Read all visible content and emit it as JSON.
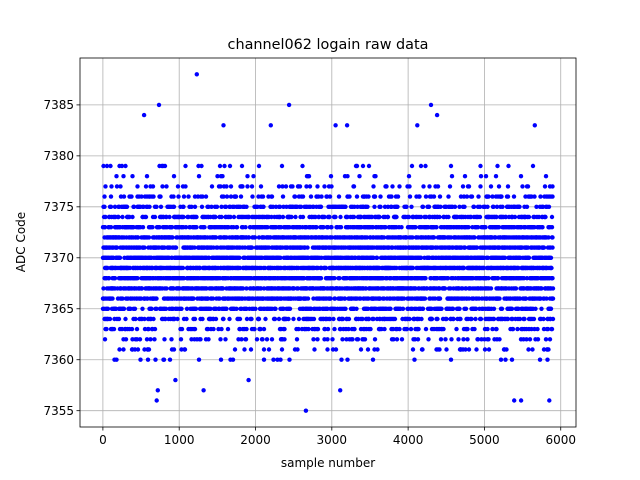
{
  "chart_data": {
    "type": "scatter",
    "title": "channel062 logain raw data",
    "xlabel": "sample number",
    "ylabel": "ADC Code",
    "xlim": [
      -300,
      6200
    ],
    "ylim": [
      7353.4,
      7389.6
    ],
    "xticks": [
      0,
      1000,
      2000,
      3000,
      4000,
      5000,
      6000
    ],
    "yticks": [
      7355,
      7360,
      7365,
      7370,
      7375,
      7380,
      7385
    ],
    "grid": true,
    "marker_color": "#0000ff",
    "n_samples": 5900,
    "x_start": 0,
    "x_step": 1,
    "dense_band": [
      7360,
      7379
    ],
    "outliers": [
      {
        "x": 540,
        "y": 7384
      },
      {
        "x": 735,
        "y": 7385
      },
      {
        "x": 705,
        "y": 7356
      },
      {
        "x": 720,
        "y": 7357
      },
      {
        "x": 1230,
        "y": 7388
      },
      {
        "x": 1320,
        "y": 7357
      },
      {
        "x": 2440,
        "y": 7385
      },
      {
        "x": 2660,
        "y": 7355
      },
      {
        "x": 3110,
        "y": 7357
      },
      {
        "x": 4300,
        "y": 7385
      },
      {
        "x": 4380,
        "y": 7384
      },
      {
        "x": 4120,
        "y": 7383
      },
      {
        "x": 5390,
        "y": 7356
      },
      {
        "x": 5480,
        "y": 7356
      },
      {
        "x": 5850,
        "y": 7356
      },
      {
        "x": 5660,
        "y": 7383
      },
      {
        "x": 3050,
        "y": 7383
      },
      {
        "x": 3200,
        "y": 7383
      },
      {
        "x": 1580,
        "y": 7383
      },
      {
        "x": 2200,
        "y": 7383
      },
      {
        "x": 950,
        "y": 7358
      },
      {
        "x": 1910,
        "y": 7358
      }
    ]
  }
}
